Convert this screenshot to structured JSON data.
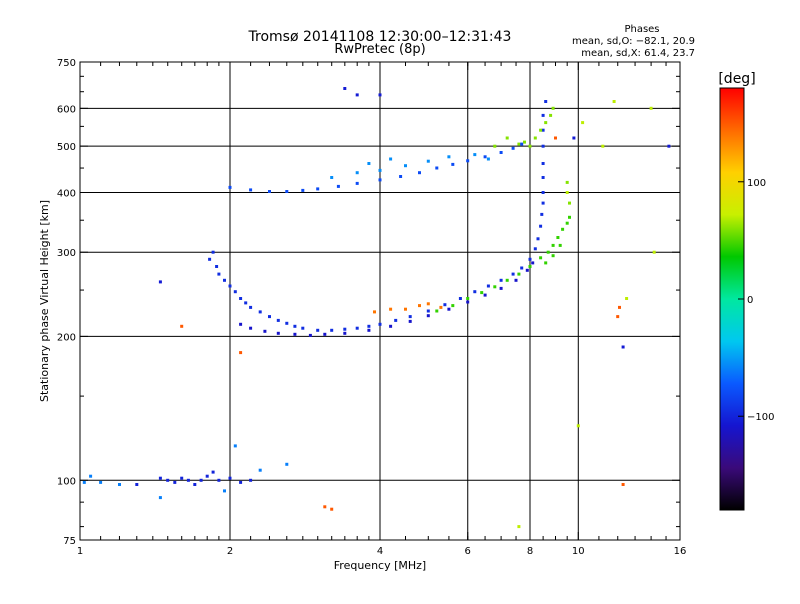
{
  "chart_data": {
    "type": "scatter",
    "title": "Tromsø 20141108 12:30:00–12:31:43",
    "subtitle": "RwPretec (8p)",
    "stats_title": "Phases",
    "stats_lines": [
      "mean, sd,O: −82.1, 20.9",
      "mean, sd,X: 61.4, 23.7"
    ],
    "xlabel": "Frequency [MHz]",
    "ylabel": "Stationary phase Virtual Height [km]",
    "x_scale": "log",
    "y_scale": "log",
    "xlim": [
      1,
      16
    ],
    "ylim": [
      75,
      750
    ],
    "x_ticks": [
      1,
      2,
      4,
      6,
      8,
      10,
      16
    ],
    "x_tick_labels": [
      "1",
      "2",
      "4",
      "6",
      "8",
      "10",
      "16"
    ],
    "y_ticks": [
      75,
      100,
      200,
      300,
      400,
      500,
      600,
      750
    ],
    "y_tick_labels": [
      "75",
      "100",
      "200",
      "300",
      "400",
      "500",
      "600",
      "750"
    ],
    "grid_x": [
      2,
      4,
      6,
      8,
      10
    ],
    "grid_y": [
      100,
      200,
      300,
      400,
      500,
      600
    ],
    "colorbar": {
      "label": "[deg]",
      "range": [
        -180,
        180
      ],
      "ticks": [
        100,
        0,
        -100
      ],
      "tick_labels": [
        "100",
        "0",
        "−100"
      ],
      "colormap": "rainbow",
      "stops": [
        "#000000",
        "#3a0a7a",
        "#1515d0",
        "#0a5aff",
        "#00c8f0",
        "#00e8a0",
        "#00c800",
        "#c8f000",
        "#ffd000",
        "#ff6a00",
        "#ff0000"
      ]
    },
    "series": [
      {
        "phase": -95,
        "points": [
          [
            1.85,
            300
          ],
          [
            1.82,
            290
          ],
          [
            1.88,
            280
          ],
          [
            1.9,
            270
          ],
          [
            1.95,
            262
          ],
          [
            2.0,
            255
          ],
          [
            2.05,
            248
          ],
          [
            2.1,
            240
          ],
          [
            2.15,
            235
          ],
          [
            2.2,
            230
          ],
          [
            2.3,
            225
          ],
          [
            2.4,
            220
          ],
          [
            2.5,
            216
          ],
          [
            2.6,
            213
          ],
          [
            2.7,
            210
          ],
          [
            2.8,
            208
          ],
          [
            3.0,
            206
          ],
          [
            3.2,
            206
          ],
          [
            3.4,
            207
          ],
          [
            3.6,
            208
          ],
          [
            3.8,
            210
          ],
          [
            4.0,
            212
          ],
          [
            4.3,
            216
          ],
          [
            4.6,
            220
          ],
          [
            5.0,
            226
          ],
          [
            5.4,
            233
          ],
          [
            5.8,
            240
          ],
          [
            6.2,
            248
          ],
          [
            6.6,
            255
          ],
          [
            7.0,
            262
          ],
          [
            7.4,
            270
          ],
          [
            7.7,
            278
          ],
          [
            8.0,
            290
          ],
          [
            8.2,
            305
          ],
          [
            8.3,
            320
          ],
          [
            8.4,
            340
          ],
          [
            8.45,
            360
          ],
          [
            8.5,
            380
          ],
          [
            8.5,
            400
          ],
          [
            8.5,
            430
          ],
          [
            8.5,
            460
          ],
          [
            8.5,
            500
          ],
          [
            8.5,
            540
          ],
          [
            8.5,
            580
          ],
          [
            8.6,
            620
          ]
        ]
      },
      {
        "phase": -110,
        "points": [
          [
            2.1,
            212
          ],
          [
            2.2,
            208
          ],
          [
            2.35,
            205
          ],
          [
            2.5,
            203
          ],
          [
            2.7,
            202
          ],
          [
            2.9,
            201
          ],
          [
            3.1,
            202
          ],
          [
            3.4,
            203
          ],
          [
            3.8,
            206
          ],
          [
            4.2,
            210
          ],
          [
            4.6,
            215
          ],
          [
            5.0,
            221
          ],
          [
            5.5,
            228
          ],
          [
            6.0,
            236
          ],
          [
            6.5,
            244
          ],
          [
            7.0,
            252
          ],
          [
            7.5,
            262
          ],
          [
            7.9,
            275
          ],
          [
            8.1,
            285
          ]
        ]
      },
      {
        "phase": 45,
        "points": [
          [
            5.2,
            226
          ],
          [
            5.6,
            232
          ],
          [
            6.0,
            240
          ],
          [
            6.4,
            247
          ],
          [
            6.8,
            254
          ],
          [
            7.2,
            262
          ],
          [
            7.6,
            270
          ],
          [
            8.0,
            280
          ],
          [
            8.4,
            292
          ],
          [
            8.7,
            300
          ],
          [
            8.9,
            310
          ],
          [
            9.1,
            322
          ],
          [
            9.3,
            335
          ],
          [
            9.5,
            345
          ],
          [
            9.6,
            355
          ],
          [
            8.6,
            285
          ],
          [
            8.9,
            295
          ],
          [
            9.2,
            310
          ]
        ]
      },
      {
        "phase": 60,
        "points": [
          [
            8.0,
            500
          ],
          [
            8.2,
            520
          ],
          [
            8.4,
            540
          ],
          [
            8.6,
            560
          ],
          [
            8.8,
            580
          ],
          [
            7.8,
            510
          ],
          [
            7.6,
            505
          ],
          [
            8.9,
            600
          ],
          [
            7.2,
            520
          ],
          [
            6.8,
            500
          ],
          [
            9.5,
            420
          ],
          [
            9.6,
            380
          ]
        ]
      },
      {
        "phase": 140,
        "points": [
          [
            4.5,
            228
          ],
          [
            4.8,
            232
          ],
          [
            5.0,
            234
          ],
          [
            5.3,
            230
          ],
          [
            3.9,
            225
          ],
          [
            4.2,
            228
          ]
        ]
      },
      {
        "phase": -80,
        "points": [
          [
            2.0,
            410
          ],
          [
            2.2,
            405
          ],
          [
            2.4,
            402
          ],
          [
            2.6,
            402
          ],
          [
            2.8,
            404
          ],
          [
            3.0,
            407
          ],
          [
            3.3,
            412
          ],
          [
            3.6,
            418
          ],
          [
            4.0,
            425
          ],
          [
            4.4,
            432
          ],
          [
            4.8,
            440
          ],
          [
            5.2,
            450
          ],
          [
            5.6,
            458
          ],
          [
            6.0,
            466
          ],
          [
            6.5,
            475
          ],
          [
            7.0,
            485
          ],
          [
            7.4,
            495
          ],
          [
            7.7,
            505
          ]
        ]
      },
      {
        "phase": -55,
        "points": [
          [
            3.2,
            430
          ],
          [
            3.6,
            440
          ],
          [
            4.0,
            445
          ],
          [
            4.5,
            455
          ],
          [
            5.0,
            465
          ],
          [
            5.5,
            475
          ],
          [
            4.2,
            470
          ],
          [
            3.8,
            460
          ],
          [
            6.2,
            480
          ],
          [
            6.6,
            470
          ]
        ]
      },
      {
        "phase": -100,
        "points": [
          [
            1.5,
            100
          ],
          [
            1.55,
            99
          ],
          [
            1.6,
            101
          ],
          [
            1.65,
            100
          ],
          [
            1.7,
            98
          ],
          [
            1.75,
            100
          ],
          [
            1.8,
            102
          ],
          [
            1.85,
            104
          ],
          [
            1.9,
            100
          ],
          [
            2.0,
            101
          ],
          [
            2.1,
            99
          ],
          [
            2.2,
            100
          ],
          [
            1.45,
            101
          ],
          [
            1.3,
            98
          ]
        ]
      },
      {
        "phase": -60,
        "points": [
          [
            1.02,
            99
          ],
          [
            1.05,
            102
          ],
          [
            1.1,
            99
          ],
          [
            1.2,
            98
          ],
          [
            1.45,
            92
          ],
          [
            1.95,
            95
          ],
          [
            2.05,
            118
          ],
          [
            2.3,
            105
          ],
          [
            2.6,
            108
          ]
        ]
      },
      {
        "phase": -105,
        "points": [
          [
            3.4,
            660
          ],
          [
            3.6,
            640
          ],
          [
            4.0,
            640
          ],
          [
            1.45,
            260
          ],
          [
            9.8,
            520
          ],
          [
            12.3,
            190
          ],
          [
            15.2,
            500
          ]
        ]
      },
      {
        "phase": 70,
        "points": [
          [
            11.8,
            620
          ],
          [
            14.0,
            600
          ],
          [
            14.2,
            300
          ],
          [
            9.5,
            400
          ],
          [
            10.2,
            560
          ],
          [
            11.2,
            500
          ],
          [
            12.5,
            240
          ],
          [
            10.0,
            130
          ],
          [
            7.6,
            80
          ]
        ]
      },
      {
        "phase": 150,
        "points": [
          [
            12.1,
            230
          ],
          [
            12.0,
            220
          ],
          [
            12.3,
            98
          ],
          [
            9.0,
            520
          ],
          [
            1.6,
            210
          ],
          [
            2.1,
            185
          ],
          [
            3.1,
            88
          ],
          [
            3.2,
            87
          ]
        ]
      }
    ]
  }
}
